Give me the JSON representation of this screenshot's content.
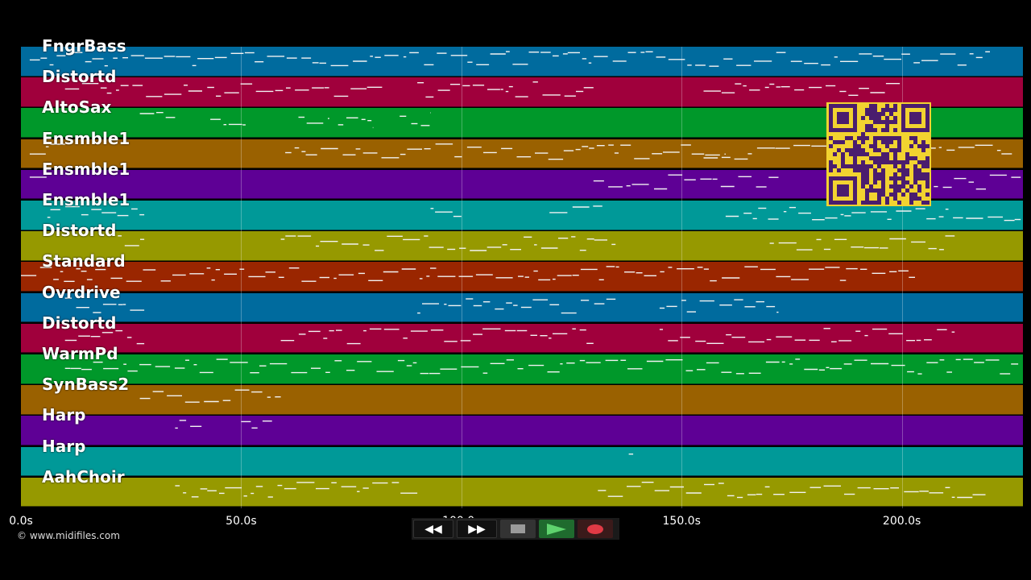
{
  "tracks": [
    {
      "label": "FngrBass",
      "color": "#006b9e"
    },
    {
      "label": "Distortd",
      "color": "#a0003c"
    },
    {
      "label": "AltoSax",
      "color": "#00982a"
    },
    {
      "label": "Ensmble1",
      "color": "#9a6100"
    },
    {
      "label": "Ensmble1",
      "color": "#5e0095"
    },
    {
      "label": "Ensmble1",
      "color": "#009998"
    },
    {
      "label": "Distortd",
      "color": "#969900"
    },
    {
      "label": "Standard",
      "color": "#9a2600"
    },
    {
      "label": "Ovrdrive",
      "color": "#006b9e"
    },
    {
      "label": "Distortd",
      "color": "#a0003c"
    },
    {
      "label": "WarmPd",
      "color": "#00982a"
    },
    {
      "label": "SynBass2",
      "color": "#9a6100"
    },
    {
      "label": "Harp",
      "color": "#5e0095"
    },
    {
      "label": "Harp",
      "color": "#009998"
    },
    {
      "label": "AahChoir",
      "color": "#969900"
    }
  ],
  "timeline": {
    "ticks": [
      "0.0s",
      "50.0s",
      "100.0s",
      "150.0s",
      "200.0s"
    ]
  },
  "controls": {
    "rewind_label": "◀◀",
    "forward_label": "▶▶",
    "stop_icon": "stop-icon",
    "play_icon": "play-icon",
    "record_icon": "record-icon"
  },
  "copyright": "© www.midifiles.com",
  "qr_colors": {
    "light": "#f2d330",
    "dark": "#4a1d6e"
  }
}
